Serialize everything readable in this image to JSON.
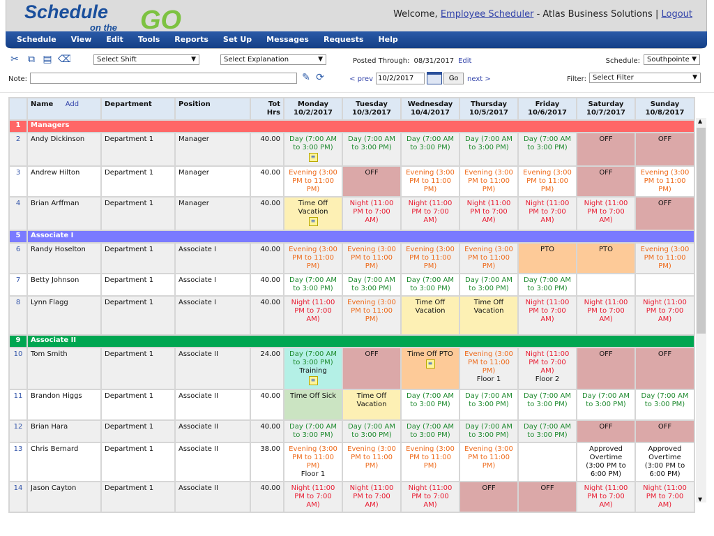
{
  "brand": {
    "logo_text_1": "Schedule",
    "logo_text_2": "on the",
    "logo_text_3": "GO"
  },
  "header": {
    "welcome": "Welcome,",
    "user": "Employee Scheduler",
    "company": "- Atlas Business Solutions |",
    "logout": "Logout"
  },
  "nav": [
    "Schedule",
    "View",
    "Edit",
    "Tools",
    "Reports",
    "Set Up",
    "Messages",
    "Requests",
    "Help"
  ],
  "toolbar": {
    "select_shift": "Select Shift",
    "select_explanation": "Select Explanation",
    "note_label": "Note:",
    "note_value": "",
    "posted_label": "Posted Through:",
    "posted_date": "08/31/2017",
    "edit": "Edit",
    "prev": "< prev",
    "date": "10/2/2017",
    "go": "Go",
    "next": "next >",
    "schedule_label": "Schedule:",
    "schedule_value": "Southpointe",
    "filter_label": "Filter:",
    "filter_value": "Select Filter"
  },
  "columns": {
    "name": "Name",
    "add": "Add",
    "department": "Department",
    "position": "Position",
    "tot_hrs": "Tot Hrs",
    "days": [
      {
        "d": "Monday",
        "date": "10/2/2017"
      },
      {
        "d": "Tuesday",
        "date": "10/3/2017"
      },
      {
        "d": "Wednesday",
        "date": "10/4/2017"
      },
      {
        "d": "Thursday",
        "date": "10/5/2017"
      },
      {
        "d": "Friday",
        "date": "10/6/2017"
      },
      {
        "d": "Saturday",
        "date": "10/7/2017"
      },
      {
        "d": "Sunday",
        "date": "10/8/2017"
      }
    ]
  },
  "colors": {
    "managers": "#ff6666",
    "associate_i": "#7a7aff",
    "associate_ii": "#00a651"
  },
  "rows": [
    {
      "n": "1",
      "group": "Managers",
      "color": "#ff6666"
    },
    {
      "n": "2",
      "name": "Andy Dickinson",
      "dept": "Department 1",
      "pos": "Manager",
      "hrs": "40.00",
      "h": 48,
      "cells": [
        [
          "Day (7:00 AM to 3:00 PM)",
          "day",
          "",
          1
        ],
        [
          "Day (7:00 AM to 3:00 PM)",
          "day"
        ],
        [
          "Day (7:00 AM to 3:00 PM)",
          "day"
        ],
        [
          "Day (7:00 AM to 3:00 PM)",
          "day"
        ],
        [
          "Day (7:00 AM to 3:00 PM)",
          "day"
        ],
        [
          "OFF",
          "black",
          "off"
        ],
        [
          "OFF",
          "black",
          "off"
        ]
      ]
    },
    {
      "n": "3",
      "name": "Andrew Hilton",
      "dept": "Department 1",
      "pos": "Manager",
      "hrs": "40.00",
      "h": 44,
      "cells": [
        [
          "Evening (3:00 PM to 11:00 PM)",
          "eve"
        ],
        [
          "OFF",
          "black",
          "off"
        ],
        [
          "Evening (3:00 PM to 11:00 PM)",
          "eve"
        ],
        [
          "Evening (3:00 PM to 11:00 PM)",
          "eve"
        ],
        [
          "Evening (3:00 PM to 11:00 PM)",
          "eve"
        ],
        [
          "OFF",
          "black",
          "off"
        ],
        [
          "Evening (3:00 PM to 11:00 PM)",
          "eve"
        ]
      ]
    },
    {
      "n": "4",
      "name": "Brian Arffman",
      "dept": "Department 1",
      "pos": "Manager",
      "hrs": "40.00",
      "h": 48,
      "cells": [
        [
          "Time Off Vacation",
          "black",
          "vac",
          1
        ],
        [
          "Night (11:00 PM to 7:00 AM)",
          "night"
        ],
        [
          "Night (11:00 PM to 7:00 AM)",
          "night"
        ],
        [
          "Night (11:00 PM to 7:00 AM)",
          "night"
        ],
        [
          "Night (11:00 PM to 7:00 AM)",
          "night"
        ],
        [
          "Night (11:00 PM to 7:00 AM)",
          "night"
        ],
        [
          "OFF",
          "black",
          "off"
        ]
      ]
    },
    {
      "n": "5",
      "group": "Associate I",
      "color": "#7a7aff"
    },
    {
      "n": "6",
      "name": "Randy Hoselton",
      "dept": "Department 1",
      "pos": "Associate I",
      "hrs": "40.00",
      "h": 44,
      "cells": [
        [
          "Evening (3:00 PM to 11:00 PM)",
          "eve"
        ],
        [
          "Evening (3:00 PM to 11:00 PM)",
          "eve"
        ],
        [
          "Evening (3:00 PM to 11:00 PM)",
          "eve"
        ],
        [
          "Evening (3:00 PM to 11:00 PM)",
          "eve"
        ],
        [
          "PTO",
          "black",
          "pto"
        ],
        [
          "PTO",
          "black",
          "pto"
        ],
        [
          "Evening (3:00 PM to 11:00 PM)",
          "eve"
        ]
      ]
    },
    {
      "n": "7",
      "name": "Betty Johnson",
      "dept": "Department 1",
      "pos": "Associate I",
      "hrs": "40.00",
      "h": 32,
      "cells": [
        [
          "Day (7:00 AM to 3:00 PM)",
          "day"
        ],
        [
          "Day (7:00 AM to 3:00 PM)",
          "day"
        ],
        [
          "Day (7:00 AM to 3:00 PM)",
          "day"
        ],
        [
          "Day (7:00 AM to 3:00 PM)",
          "day"
        ],
        [
          "Day (7:00 AM to 3:00 PM)",
          "day"
        ],
        [
          "",
          ""
        ],
        [
          "",
          ""
        ]
      ]
    },
    {
      "n": "8",
      "name": "Lynn Flagg",
      "dept": "Department 1",
      "pos": "Associate I",
      "hrs": "40.00",
      "h": 56,
      "cells": [
        [
          "Night (11:00 PM to 7:00 AM)",
          "night"
        ],
        [
          "Evening (3:00 PM to 11:00 PM)",
          "eve"
        ],
        [
          "Time Off Vacation",
          "black",
          "vac"
        ],
        [
          "Time Off Vacation",
          "black",
          "vac"
        ],
        [
          "Night (11:00 PM to 7:00 AM)",
          "night"
        ],
        [
          "Night (11:00 PM to 7:00 AM)",
          "night"
        ],
        [
          "Night (11:00 PM to 7:00 AM)",
          "night"
        ]
      ]
    },
    {
      "n": "9",
      "group": "Associate II",
      "color": "#00a651"
    },
    {
      "n": "10",
      "name": "Tom Smith",
      "dept": "Department 1",
      "pos": "Associate II",
      "hrs": "24.00",
      "h": 60,
      "cells": [
        [
          "Day (7:00 AM to 3:00 PM)",
          "day",
          "trn",
          1,
          "Training"
        ],
        [
          "OFF",
          "black",
          "off"
        ],
        [
          "Time Off PTO",
          "black",
          "pto",
          1
        ],
        [
          "Evening (3:00 PM to 11:00 PM)",
          "eve",
          "",
          0,
          "Floor 1"
        ],
        [
          "Night (11:00 PM to 7:00 AM)",
          "night",
          "",
          0,
          "Floor 2"
        ],
        [
          "OFF",
          "black",
          "off"
        ],
        [
          "OFF",
          "black",
          "off"
        ]
      ]
    },
    {
      "n": "11",
      "name": "Brandon Higgs",
      "dept": "Department 1",
      "pos": "Associate II",
      "hrs": "40.00",
      "h": 44,
      "cells": [
        [
          "Time Off Sick",
          "black",
          "sick"
        ],
        [
          "Time Off Vacation",
          "black",
          "vac"
        ],
        [
          "Day (7:00 AM to 3:00 PM)",
          "day"
        ],
        [
          "Day (7:00 AM to 3:00 PM)",
          "day"
        ],
        [
          "Day (7:00 AM to 3:00 PM)",
          "day"
        ],
        [
          "Day (7:00 AM to 3:00 PM)",
          "day"
        ],
        [
          "Day (7:00 AM to 3:00 PM)",
          "day"
        ]
      ]
    },
    {
      "n": "12",
      "name": "Brian Hara",
      "dept": "Department 1",
      "pos": "Associate II",
      "hrs": "40.00",
      "h": 32,
      "cells": [
        [
          "Day (7:00 AM to 3:00 PM)",
          "day"
        ],
        [
          "Day (7:00 AM to 3:00 PM)",
          "day"
        ],
        [
          "Day (7:00 AM to 3:00 PM)",
          "day"
        ],
        [
          "Day (7:00 AM to 3:00 PM)",
          "day"
        ],
        [
          "Day (7:00 AM to 3:00 PM)",
          "day"
        ],
        [
          "OFF",
          "black",
          "off"
        ],
        [
          "OFF",
          "black",
          "off"
        ]
      ]
    },
    {
      "n": "13",
      "name": "Chris Bernard",
      "dept": "Department 1",
      "pos": "Associate II",
      "hrs": "38.00",
      "h": 56,
      "cells": [
        [
          "Evening (3:00 PM to 11:00 PM)",
          "eve",
          "",
          0,
          "Floor 1"
        ],
        [
          "Evening (3:00 PM to 11:00 PM)",
          "eve"
        ],
        [
          "Evening (3:00 PM to 11:00 PM)",
          "eve"
        ],
        [
          "Evening (3:00 PM to 11:00 PM)",
          "eve"
        ],
        [
          "",
          ""
        ],
        [
          "Approved Overtime (3:00 PM to 6:00 PM)",
          "black"
        ],
        [
          "Approved Overtime (3:00 PM to 6:00 PM)",
          "black"
        ]
      ]
    },
    {
      "n": "14",
      "name": "Jason Cayton",
      "dept": "Department 1",
      "pos": "Associate II",
      "hrs": "40.00",
      "h": 44,
      "cells": [
        [
          "Night (11:00 PM to 7:00 AM)",
          "night"
        ],
        [
          "Night (11:00 PM to 7:00 AM)",
          "night"
        ],
        [
          "Night (11:00 PM to 7:00 AM)",
          "night"
        ],
        [
          "OFF",
          "black",
          "off"
        ],
        [
          "OFF",
          "black",
          "off"
        ],
        [
          "Night (11:00 PM to 7:00 AM)",
          "night"
        ],
        [
          "Night (11:00 PM to 7:00 AM)",
          "night"
        ]
      ]
    }
  ]
}
